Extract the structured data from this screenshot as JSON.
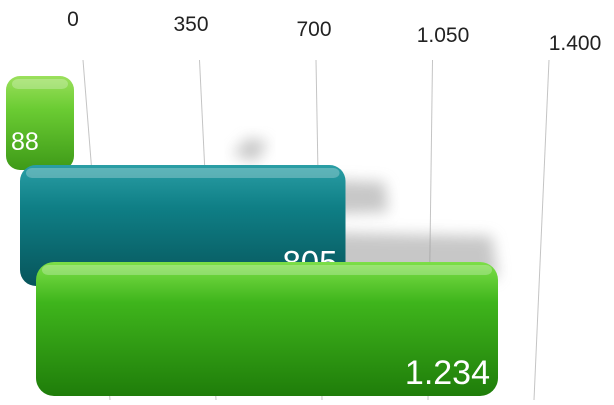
{
  "chart_data": {
    "type": "bar",
    "orientation": "horizontal",
    "perspective": "3d",
    "title": "",
    "xlabel": "",
    "ylabel": "",
    "xlim": [
      0,
      1400
    ],
    "ticks": [
      0,
      350,
      700,
      1050,
      1400
    ],
    "tick_labels": [
      "0",
      "350",
      "700",
      "1.050",
      "1.400"
    ],
    "grid": true,
    "legend": "none",
    "values": [
      88,
      805,
      1234
    ],
    "value_labels": [
      "88",
      "805",
      "1.234"
    ],
    "bar_colors": [
      "#6bcc33",
      "#0f7f86",
      "#3fb51c"
    ]
  }
}
